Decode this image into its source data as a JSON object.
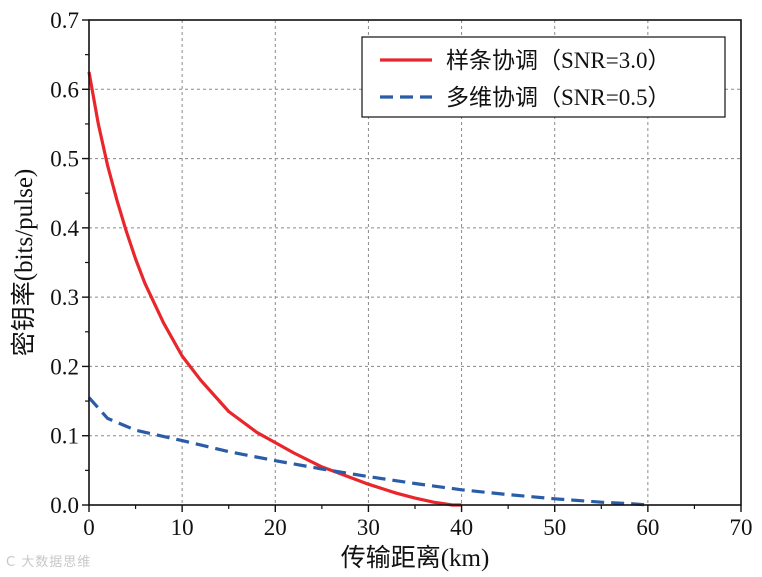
{
  "chart_data": {
    "type": "line",
    "xlabel": "传输距离(km)",
    "ylabel": "密钥率(bits/pulse)",
    "xlim": [
      0,
      70
    ],
    "ylim": [
      0,
      0.7
    ],
    "x_ticks": [
      0,
      10,
      20,
      30,
      40,
      50,
      60,
      70
    ],
    "y_ticks": [
      0.0,
      0.1,
      0.2,
      0.3,
      0.4,
      0.5,
      0.6,
      0.7
    ],
    "x_tick_labels": [
      "0",
      "10",
      "20",
      "30",
      "40",
      "50",
      "60",
      "70"
    ],
    "y_tick_labels": [
      "0.0",
      "0.1",
      "0.2",
      "0.3",
      "0.4",
      "0.5",
      "0.6",
      "0.7"
    ],
    "grid": true,
    "legend_position": "top-right",
    "series": [
      {
        "name": "样条协调（SNR=3.0）",
        "color": "#e8262b",
        "style": "solid",
        "x": [
          0,
          1,
          2,
          3,
          4,
          5,
          6,
          8,
          10,
          12,
          15,
          18,
          20,
          22,
          25,
          27,
          30,
          33,
          35,
          37,
          39,
          40
        ],
        "y": [
          0.625,
          0.55,
          0.49,
          0.44,
          0.395,
          0.355,
          0.32,
          0.263,
          0.215,
          0.18,
          0.135,
          0.105,
          0.09,
          0.075,
          0.055,
          0.045,
          0.03,
          0.017,
          0.01,
          0.004,
          0.0,
          0.0
        ]
      },
      {
        "name": "多维协调（SNR=0.5）",
        "color": "#2a5ca8",
        "style": "dashed",
        "x": [
          0,
          2,
          5,
          10,
          15,
          20,
          25,
          30,
          35,
          40,
          45,
          50,
          55,
          58,
          60
        ],
        "y": [
          0.155,
          0.125,
          0.108,
          0.093,
          0.077,
          0.064,
          0.052,
          0.041,
          0.031,
          0.022,
          0.015,
          0.009,
          0.004,
          0.002,
          0.0
        ]
      }
    ]
  },
  "watermark": "C 大数据思维"
}
